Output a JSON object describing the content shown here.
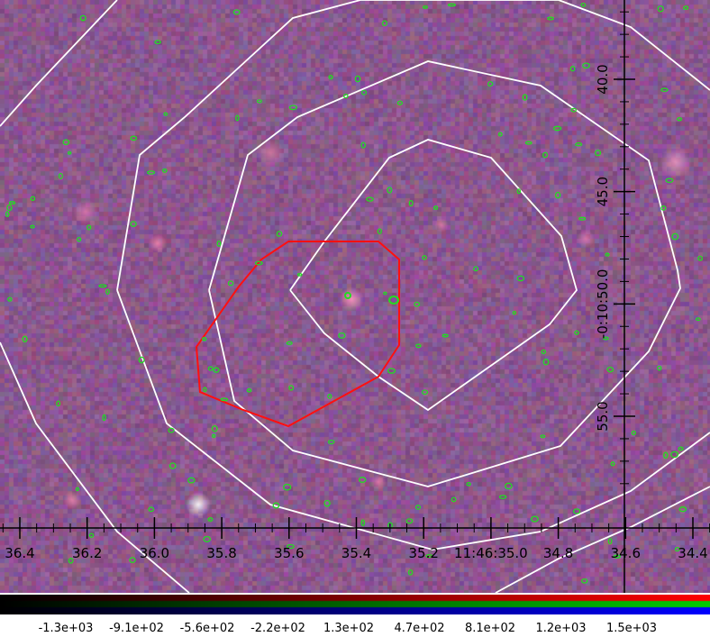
{
  "x_ticks": [
    {
      "label": "36.4",
      "value": 36.4
    },
    {
      "label": "36.2",
      "value": 36.2
    },
    {
      "label": "36.0",
      "value": 36.0
    },
    {
      "label": "35.8",
      "value": 35.8
    },
    {
      "label": "35.6",
      "value": 35.6
    },
    {
      "label": "35.4",
      "value": 35.4
    },
    {
      "label": "35.2",
      "value": 35.2
    },
    {
      "label": "11:46:35.0",
      "value": 35.0
    },
    {
      "label": "34.8",
      "value": 34.8
    },
    {
      "label": "34.6",
      "value": 34.6
    },
    {
      "label": "34.4",
      "value": 34.4
    }
  ],
  "y_ticks": [
    {
      "label": "40.0",
      "value": 40.0
    },
    {
      "label": "45.0",
      "value": 45.0
    },
    {
      "label": "-0:10:50.0",
      "value": 50.0
    },
    {
      "label": "55.0",
      "value": 55.0
    }
  ],
  "colorbar": {
    "labels": [
      "-1.3e+03",
      "-9.1e+02",
      "-5.6e+02",
      "-2.2e+02",
      "1.3e+02",
      "4.7e+02",
      "8.1e+02",
      "1.2e+03",
      "1.5e+03"
    ]
  },
  "colors": {
    "background_image": "#8a5a8e",
    "contour_large": "#ffffff",
    "contour_small": "#22dd22",
    "region": "#ff0000",
    "axes": "#000000"
  }
}
